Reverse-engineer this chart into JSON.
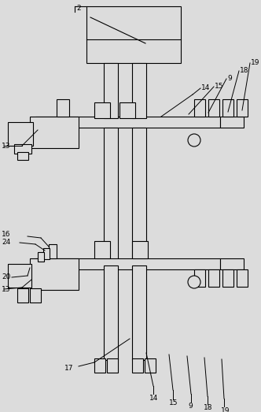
{
  "bg_color": "#dcdcdc",
  "line_color": "#000000",
  "lw": 0.8,
  "fig_width": 3.32,
  "fig_height": 5.23,
  "dpi": 100
}
